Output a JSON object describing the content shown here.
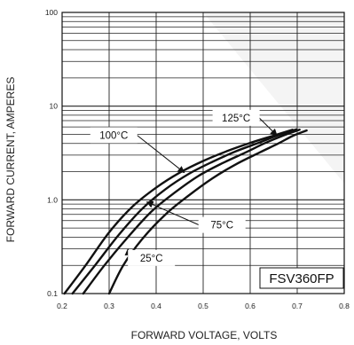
{
  "chart_data": {
    "type": "line",
    "title": "",
    "xlabel": "FORWARD VOLTAGE, VOLTS",
    "ylabel": "FORWARD CURRENT, AMPERES",
    "xlim": [
      0.2,
      0.8
    ],
    "ylim": [
      0.1,
      100
    ],
    "yscale": "log",
    "grid": true,
    "x_ticks": [
      0.2,
      0.3,
      0.4,
      0.5,
      0.6,
      0.7,
      0.8
    ],
    "x_tick_labels": [
      "0.2",
      "0.3",
      "0.4",
      "0.5",
      "0.6",
      "0.7",
      "0.8"
    ],
    "y_ticks": [
      0.1,
      1.0,
      10,
      100
    ],
    "y_tick_labels": [
      "0.1",
      "1.0",
      "10",
      "100"
    ],
    "part_number": "FSV360FP",
    "line_color": "#111111",
    "background": "#ffffff",
    "series": [
      {
        "name": "125°C",
        "points": [
          [
            0.205,
            0.1
          ],
          [
            0.25,
            0.2
          ],
          [
            0.3,
            0.45
          ],
          [
            0.35,
            0.85
          ],
          [
            0.4,
            1.35
          ],
          [
            0.45,
            1.95
          ],
          [
            0.5,
            2.6
          ],
          [
            0.55,
            3.3
          ],
          [
            0.6,
            4.05
          ],
          [
            0.65,
            4.85
          ],
          [
            0.69,
            5.6
          ]
        ]
      },
      {
        "name": "100°C",
        "points": [
          [
            0.222,
            0.1
          ],
          [
            0.27,
            0.2
          ],
          [
            0.32,
            0.42
          ],
          [
            0.37,
            0.8
          ],
          [
            0.42,
            1.3
          ],
          [
            0.47,
            1.9
          ],
          [
            0.52,
            2.55
          ],
          [
            0.57,
            3.3
          ],
          [
            0.62,
            4.1
          ],
          [
            0.66,
            4.9
          ],
          [
            0.698,
            5.65
          ]
        ]
      },
      {
        "name": "75°C",
        "points": [
          [
            0.245,
            0.1
          ],
          [
            0.29,
            0.2
          ],
          [
            0.34,
            0.4
          ],
          [
            0.39,
            0.75
          ],
          [
            0.44,
            1.2
          ],
          [
            0.49,
            1.8
          ],
          [
            0.54,
            2.45
          ],
          [
            0.59,
            3.2
          ],
          [
            0.63,
            4.0
          ],
          [
            0.67,
            4.85
          ],
          [
            0.705,
            5.6
          ]
        ]
      },
      {
        "name": "25°C",
        "points": [
          [
            0.3,
            0.1
          ],
          [
            0.33,
            0.2
          ],
          [
            0.37,
            0.38
          ],
          [
            0.42,
            0.7
          ],
          [
            0.47,
            1.12
          ],
          [
            0.52,
            1.7
          ],
          [
            0.57,
            2.4
          ],
          [
            0.62,
            3.2
          ],
          [
            0.66,
            4.0
          ],
          [
            0.69,
            4.8
          ],
          [
            0.72,
            5.5
          ]
        ]
      }
    ],
    "annotations": [
      {
        "label": "125°C",
        "box_at": [
          0.57,
          7.5
        ],
        "arrow_to": [
          0.657,
          4.85
        ]
      },
      {
        "label": "100°C",
        "box_at": [
          0.31,
          4.9
        ],
        "arrow_to": [
          0.46,
          1.95
        ]
      },
      {
        "label": "75°C",
        "box_at": [
          0.54,
          0.54
        ],
        "arrow_to": [
          0.38,
          0.95
        ]
      },
      {
        "label": "25°C",
        "box_at": [
          0.39,
          0.24
        ],
        "arrow_to": [
          0.34,
          0.3
        ]
      }
    ]
  }
}
